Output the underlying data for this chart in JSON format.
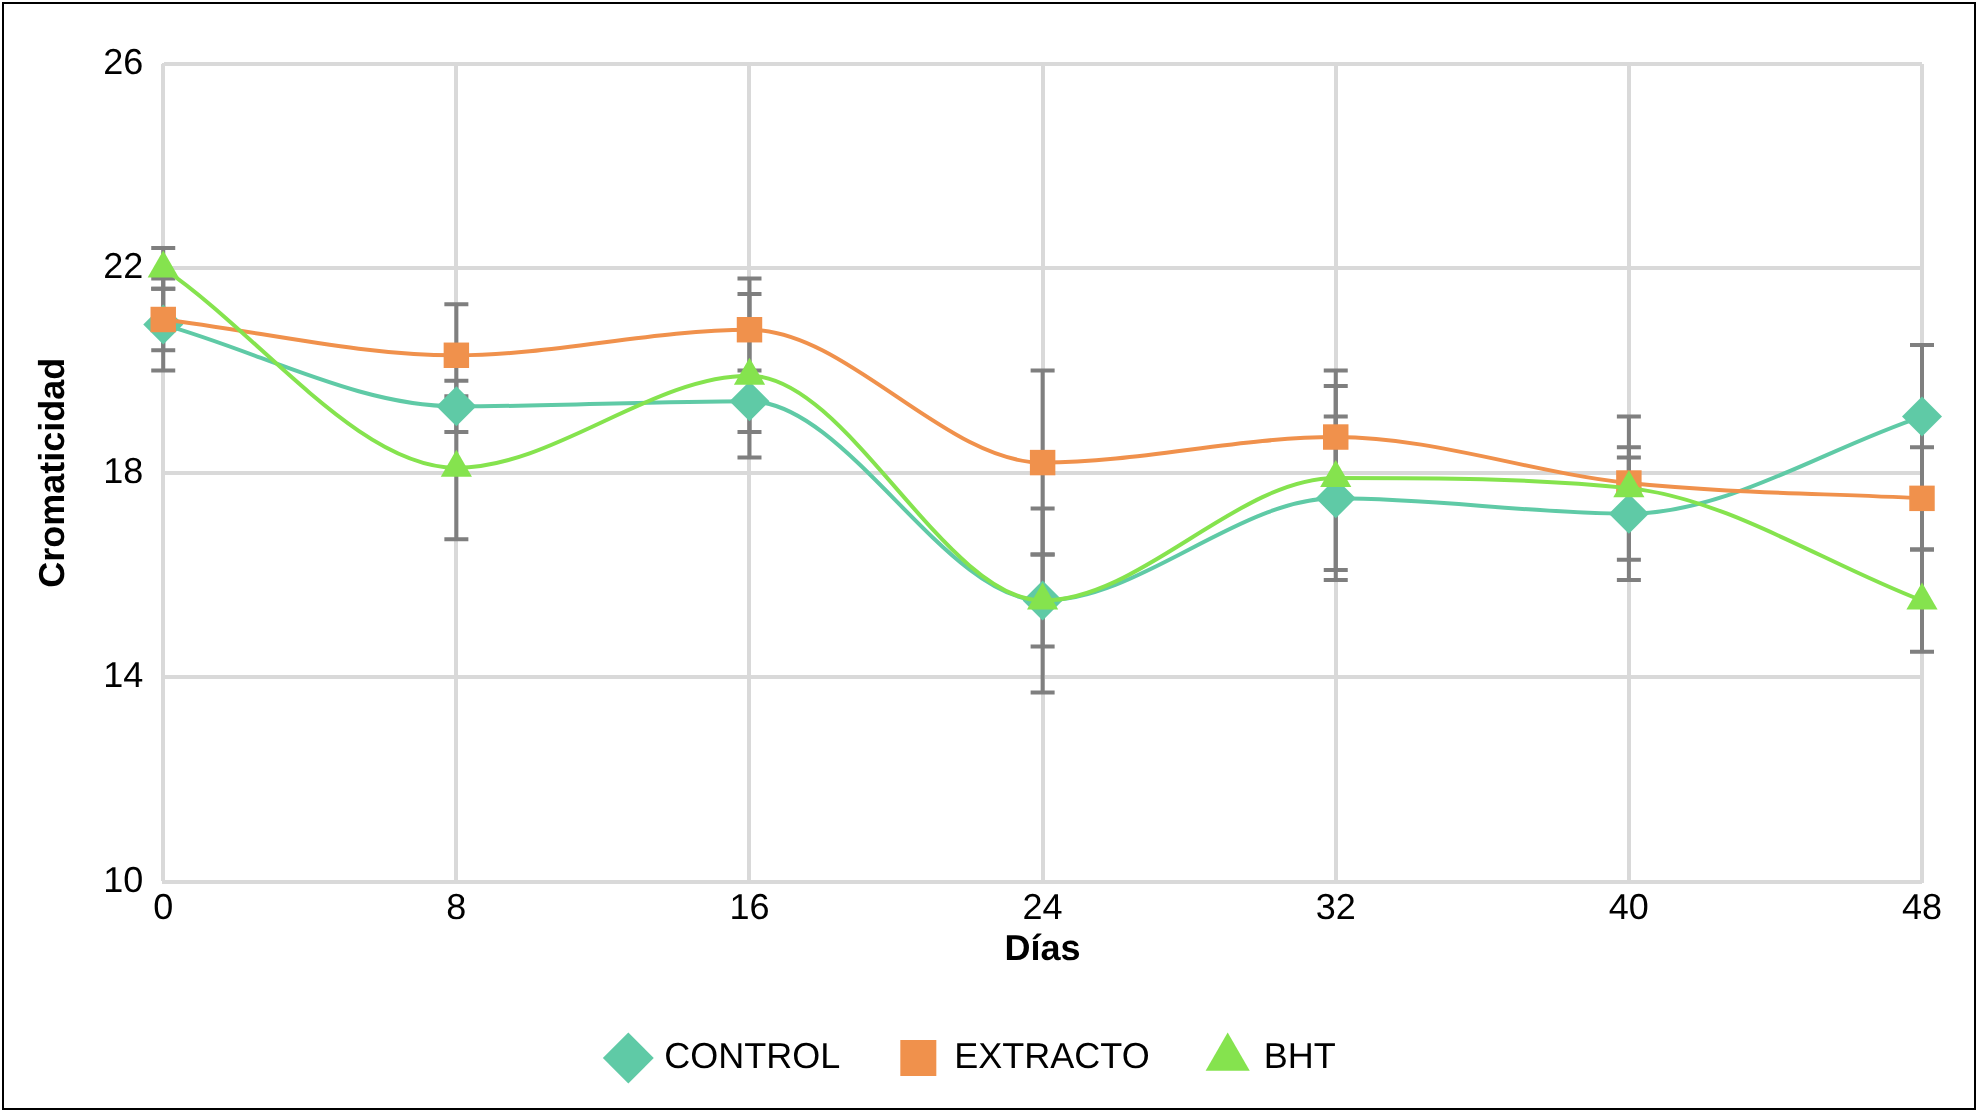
{
  "chart_data": {
    "type": "line",
    "xlabel": "Días",
    "ylabel": "Cromaticidad",
    "x": [
      0,
      8,
      16,
      24,
      32,
      40,
      48
    ],
    "xlim": [
      0,
      48
    ],
    "xticks": [
      0,
      8,
      16,
      24,
      32,
      40,
      48
    ],
    "ylim": [
      10,
      26
    ],
    "yticks": [
      10,
      14,
      18,
      22,
      26
    ],
    "grid": true,
    "legend": "bottom",
    "series": [
      {
        "name": "CONTROL",
        "color": "#5fcaa6",
        "marker": "diamond",
        "values": [
          20.9,
          19.3,
          19.4,
          15.5,
          17.5,
          17.2,
          19.1
        ],
        "errors": [
          0.9,
          0.5,
          0.6,
          1.8,
          1.6,
          1.3,
          1.4
        ]
      },
      {
        "name": "EXTRACTO",
        "color": "#f0914c",
        "marker": "square",
        "values": [
          21.0,
          20.3,
          20.8,
          18.2,
          18.7,
          17.8,
          17.5
        ],
        "errors": [
          0.6,
          1.0,
          1.0,
          1.8,
          1.3,
          0.5,
          1.0
        ]
      },
      {
        "name": "BHT",
        "color": "#85e34e",
        "marker": "triangle",
        "values": [
          22.0,
          18.1,
          19.9,
          15.5,
          17.9,
          17.7,
          15.5
        ],
        "errors": [
          0.4,
          1.4,
          1.6,
          0.9,
          1.8,
          1.4,
          1.0
        ]
      }
    ]
  }
}
